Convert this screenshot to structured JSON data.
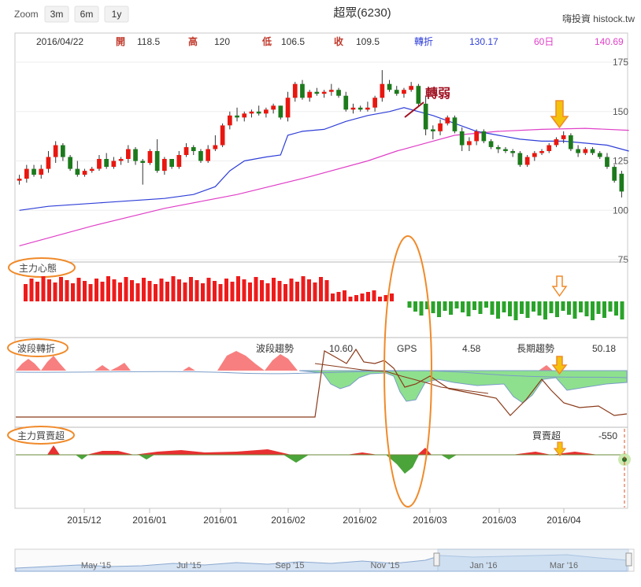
{
  "header": {
    "zoom_label": "Zoom",
    "zoom_buttons": [
      "3m",
      "6m",
      "1y"
    ],
    "title": "超眾(6230)",
    "brand": "嗨投資 histock.tw"
  },
  "ohlc_bar": {
    "date": "2016/04/22",
    "open_label": "開",
    "open": "118.5",
    "high_label": "高",
    "high": "120",
    "low_label": "低",
    "low": "106.5",
    "close_label": "收",
    "close": "109.5",
    "turn_label": "轉折",
    "turn": "130.17",
    "ma60_label": "60日",
    "ma60": "140.69"
  },
  "annotations": {
    "weak_turn": "轉弱"
  },
  "panels": {
    "main_force_label": "主力心態",
    "wave_label": "波段轉折",
    "wave_trend_label": "波段趨勢",
    "wave_trend_value": "10.60",
    "gps_label": "GPS",
    "gps_value": "4.58",
    "long_trend_label": "長期趨勢",
    "long_trend_value": "50.18",
    "buysell_label": "主力買賣超",
    "buysell_title": "買賣超",
    "buysell_value": "-550"
  },
  "x_axis_labels": [
    "2015/12",
    "2016/01",
    "2016/01",
    "2016/02",
    "2016/02",
    "2016/03",
    "2016/03",
    "2016/04"
  ],
  "navigator_labels": [
    "May '15",
    "Jul '15",
    "Sep '15",
    "Nov '15",
    "Jan '16",
    "Mar '16"
  ],
  "colors": {
    "up": "#e8170f",
    "down": "#1c7a1c",
    "turn_line": "#2f3fd8",
    "ma60_line": "#e040c8",
    "highlight": "#f08a2a"
  },
  "chart_data": {
    "type": "candlestick",
    "y_ticks": [
      75,
      100,
      125,
      150,
      175
    ],
    "ylim": [
      75,
      181
    ],
    "candles": [
      {
        "o": 115,
        "h": 118,
        "l": 113,
        "c": 116
      },
      {
        "o": 116,
        "h": 123,
        "l": 114,
        "c": 121
      },
      {
        "o": 121,
        "h": 123,
        "l": 117,
        "c": 118
      },
      {
        "o": 118,
        "h": 123,
        "l": 116,
        "c": 121
      },
      {
        "o": 121,
        "h": 130,
        "l": 119,
        "c": 127
      },
      {
        "o": 127,
        "h": 135,
        "l": 124,
        "c": 133
      },
      {
        "o": 133,
        "h": 134,
        "l": 125,
        "c": 127
      },
      {
        "o": 127,
        "h": 128,
        "l": 120,
        "c": 121
      },
      {
        "o": 121,
        "h": 125,
        "l": 117,
        "c": 118
      },
      {
        "o": 118,
        "h": 121,
        "l": 117,
        "c": 120
      },
      {
        "o": 120,
        "h": 122,
        "l": 119,
        "c": 121
      },
      {
        "o": 121,
        "h": 128,
        "l": 120,
        "c": 126
      },
      {
        "o": 126,
        "h": 129,
        "l": 121,
        "c": 122
      },
      {
        "o": 122,
        "h": 127,
        "l": 121,
        "c": 125
      },
      {
        "o": 125,
        "h": 127,
        "l": 123,
        "c": 126
      },
      {
        "o": 126,
        "h": 133,
        "l": 124,
        "c": 131
      },
      {
        "o": 131,
        "h": 132,
        "l": 123,
        "c": 125
      },
      {
        "o": 125,
        "h": 126,
        "l": 113,
        "c": 124
      },
      {
        "o": 124,
        "h": 131,
        "l": 123,
        "c": 130
      },
      {
        "o": 130,
        "h": 136,
        "l": 119,
        "c": 120
      },
      {
        "o": 120,
        "h": 127,
        "l": 118,
        "c": 126
      },
      {
        "o": 126,
        "h": 126,
        "l": 121,
        "c": 122
      },
      {
        "o": 122,
        "h": 130,
        "l": 121,
        "c": 128
      },
      {
        "o": 128,
        "h": 134,
        "l": 127,
        "c": 132
      },
      {
        "o": 132,
        "h": 133,
        "l": 128,
        "c": 130
      },
      {
        "o": 130,
        "h": 131,
        "l": 124,
        "c": 125
      },
      {
        "o": 125,
        "h": 133,
        "l": 124,
        "c": 131
      },
      {
        "o": 131,
        "h": 138,
        "l": 130,
        "c": 133
      },
      {
        "o": 133,
        "h": 144,
        "l": 132,
        "c": 143
      },
      {
        "o": 143,
        "h": 150,
        "l": 141,
        "c": 148
      },
      {
        "o": 148,
        "h": 152,
        "l": 145,
        "c": 147
      },
      {
        "o": 147,
        "h": 150,
        "l": 145,
        "c": 149
      },
      {
        "o": 149,
        "h": 151,
        "l": 147,
        "c": 150
      },
      {
        "o": 150,
        "h": 153,
        "l": 148,
        "c": 149
      },
      {
        "o": 149,
        "h": 152,
        "l": 147,
        "c": 151
      },
      {
        "o": 151,
        "h": 154,
        "l": 149,
        "c": 153
      },
      {
        "o": 153,
        "h": 153,
        "l": 146,
        "c": 147
      },
      {
        "o": 147,
        "h": 160,
        "l": 145,
        "c": 157
      },
      {
        "o": 157,
        "h": 165,
        "l": 155,
        "c": 164
      },
      {
        "o": 164,
        "h": 166,
        "l": 156,
        "c": 157
      },
      {
        "o": 157,
        "h": 161,
        "l": 155,
        "c": 160
      },
      {
        "o": 160,
        "h": 162,
        "l": 158,
        "c": 159
      },
      {
        "o": 159,
        "h": 161,
        "l": 157,
        "c": 160
      },
      {
        "o": 160,
        "h": 164,
        "l": 158,
        "c": 161
      },
      {
        "o": 161,
        "h": 162,
        "l": 157,
        "c": 158
      },
      {
        "o": 158,
        "h": 160,
        "l": 150,
        "c": 151
      },
      {
        "o": 151,
        "h": 154,
        "l": 149,
        "c": 152
      },
      {
        "o": 152,
        "h": 153,
        "l": 150,
        "c": 151
      },
      {
        "o": 151,
        "h": 155,
        "l": 150,
        "c": 152
      },
      {
        "o": 152,
        "h": 158,
        "l": 150,
        "c": 157
      },
      {
        "o": 157,
        "h": 171,
        "l": 155,
        "c": 164
      },
      {
        "o": 164,
        "h": 166,
        "l": 160,
        "c": 161
      },
      {
        "o": 161,
        "h": 163,
        "l": 158,
        "c": 159
      },
      {
        "o": 159,
        "h": 162,
        "l": 157,
        "c": 161
      },
      {
        "o": 161,
        "h": 165,
        "l": 160,
        "c": 163
      },
      {
        "o": 163,
        "h": 164,
        "l": 153,
        "c": 154
      },
      {
        "o": 154,
        "h": 158,
        "l": 138,
        "c": 141
      },
      {
        "o": 141,
        "h": 143,
        "l": 136,
        "c": 140
      },
      {
        "o": 140,
        "h": 146,
        "l": 138,
        "c": 144
      },
      {
        "o": 144,
        "h": 148,
        "l": 143,
        "c": 147
      },
      {
        "o": 147,
        "h": 148,
        "l": 139,
        "c": 140
      },
      {
        "o": 140,
        "h": 142,
        "l": 130,
        "c": 133
      },
      {
        "o": 133,
        "h": 137,
        "l": 130,
        "c": 135
      },
      {
        "o": 135,
        "h": 141,
        "l": 133,
        "c": 140
      },
      {
        "o": 140,
        "h": 141,
        "l": 134,
        "c": 135
      },
      {
        "o": 135,
        "h": 136,
        "l": 131,
        "c": 132
      },
      {
        "o": 132,
        "h": 133,
        "l": 129,
        "c": 131
      },
      {
        "o": 131,
        "h": 132,
        "l": 129,
        "c": 130
      },
      {
        "o": 130,
        "h": 131,
        "l": 127,
        "c": 129
      },
      {
        "o": 129,
        "h": 130,
        "l": 122,
        "c": 123
      },
      {
        "o": 123,
        "h": 128,
        "l": 122,
        "c": 127
      },
      {
        "o": 127,
        "h": 130,
        "l": 125,
        "c": 129
      },
      {
        "o": 129,
        "h": 131,
        "l": 128,
        "c": 130
      },
      {
        "o": 130,
        "h": 134,
        "l": 129,
        "c": 133
      },
      {
        "o": 133,
        "h": 137,
        "l": 132,
        "c": 136
      },
      {
        "o": 136,
        "h": 140,
        "l": 134,
        "c": 138
      },
      {
        "o": 138,
        "h": 139,
        "l": 130,
        "c": 131
      },
      {
        "o": 131,
        "h": 133,
        "l": 127,
        "c": 129
      },
      {
        "o": 129,
        "h": 132,
        "l": 128,
        "c": 131
      },
      {
        "o": 131,
        "h": 132,
        "l": 128,
        "c": 129
      },
      {
        "o": 129,
        "h": 130,
        "l": 126,
        "c": 127
      },
      {
        "o": 127,
        "h": 129,
        "l": 121,
        "c": 122
      },
      {
        "o": 122,
        "h": 123,
        "l": 114,
        "c": 115
      },
      {
        "o": 118.5,
        "h": 120,
        "l": 106.5,
        "c": 109.5
      }
    ],
    "turn_line": [
      [
        0,
        100
      ],
      [
        4,
        102
      ],
      [
        8,
        103
      ],
      [
        12,
        104
      ],
      [
        16,
        105
      ],
      [
        20,
        106
      ],
      [
        24,
        108
      ],
      [
        27,
        112
      ],
      [
        29,
        120
      ],
      [
        31,
        125
      ],
      [
        34,
        127
      ],
      [
        36,
        128
      ],
      [
        37,
        138
      ],
      [
        39,
        140
      ],
      [
        42,
        141
      ],
      [
        45,
        145
      ],
      [
        48,
        148
      ],
      [
        51,
        150
      ],
      [
        53,
        152
      ],
      [
        55,
        150
      ],
      [
        57,
        148
      ],
      [
        60,
        144
      ],
      [
        63,
        140
      ],
      [
        66,
        138
      ],
      [
        69,
        136
      ],
      [
        72,
        135
      ],
      [
        75,
        135
      ],
      [
        78,
        134
      ],
      [
        81,
        133
      ],
      [
        84,
        130
      ]
    ],
    "ma60_line": [
      [
        0,
        82
      ],
      [
        10,
        92
      ],
      [
        20,
        101
      ],
      [
        30,
        108
      ],
      [
        40,
        117
      ],
      [
        48,
        125
      ],
      [
        52,
        130
      ],
      [
        56,
        134
      ],
      [
        60,
        138
      ],
      [
        66,
        140
      ],
      [
        72,
        141
      ],
      [
        78,
        141.5
      ],
      [
        84,
        140.5
      ]
    ]
  }
}
